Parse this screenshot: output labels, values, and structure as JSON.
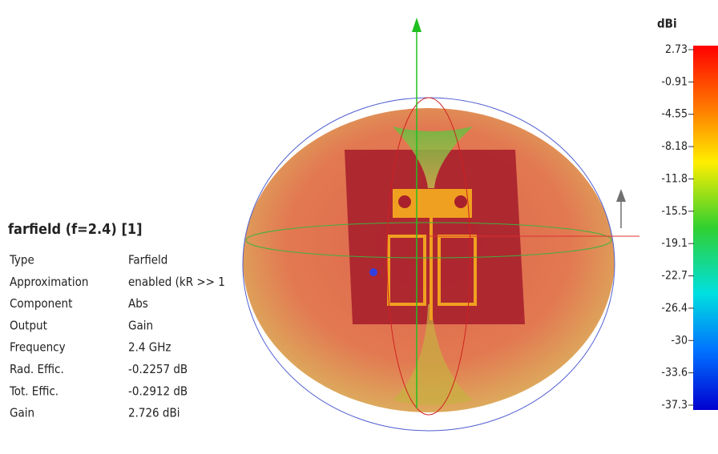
{
  "info": {
    "title": "farfield (f=2.4) [1]",
    "rows": [
      [
        "Type",
        "Farfield"
      ],
      [
        "Approximation",
        "enabled (kR >> 1"
      ],
      [
        "Component",
        "Abs"
      ],
      [
        "Output",
        "Gain"
      ],
      [
        "Frequency",
        "2.4 GHz"
      ],
      [
        "Rad. Effic.",
        "-0.2257 dB"
      ],
      [
        "Tot. Effic.",
        "-0.2912 dB"
      ],
      [
        "Gain",
        "2.726 dBi"
      ]
    ]
  },
  "colorbar": {
    "unit": "dBi",
    "ticks": [
      "2.73",
      "-0.91",
      "-4.55",
      "-8.18",
      "-11.8",
      "-15.5",
      "-19.1",
      "-22.7",
      "-26.4",
      "-30",
      "-33.6",
      "-37.3"
    ]
  }
}
